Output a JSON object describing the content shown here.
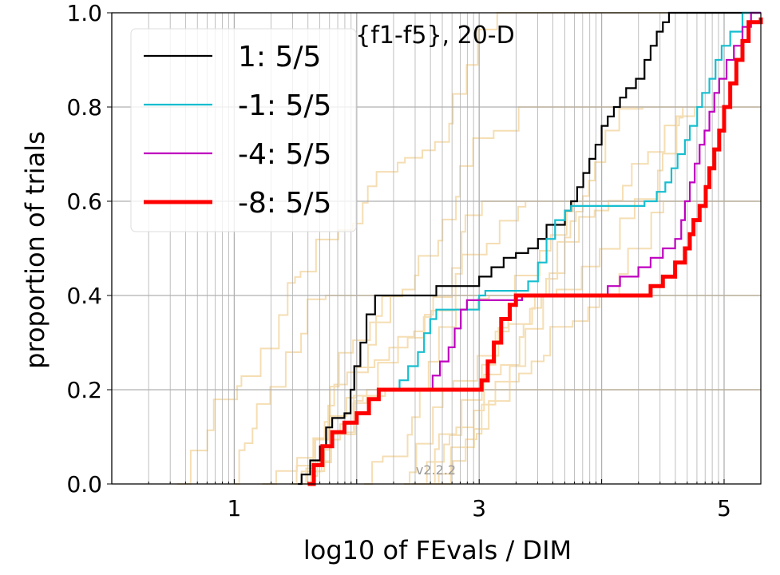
{
  "chart_data": {
    "type": "line",
    "title": "{f1-f5}, 20-D",
    "xlabel": "log10 of FEvals / DIM",
    "ylabel": "proportion of trials",
    "xlim": [
      0.0,
      5.3
    ],
    "ylim": [
      0.0,
      1.0
    ],
    "x_ticks": [
      1,
      3,
      5
    ],
    "x_tick_labels": [
      "1",
      "3",
      "5"
    ],
    "y_ticks": [
      0.0,
      0.2,
      0.4,
      0.6,
      0.8,
      1.0
    ],
    "y_tick_labels": [
      "0.0",
      "0.2",
      "0.4",
      "0.6",
      "0.8",
      "1.0"
    ],
    "grid": true,
    "legend_position": "top-left",
    "version": "v2.2.2",
    "series": [
      {
        "name": "1: 5/5",
        "color": "#000000",
        "points": [
          [
            1.52,
            0.0
          ],
          [
            1.55,
            0.02
          ],
          [
            1.62,
            0.05
          ],
          [
            1.7,
            0.08
          ],
          [
            1.75,
            0.12
          ],
          [
            1.8,
            0.14
          ],
          [
            1.9,
            0.15
          ],
          [
            1.95,
            0.2
          ],
          [
            1.98,
            0.25
          ],
          [
            2.03,
            0.3
          ],
          [
            2.08,
            0.36
          ],
          [
            2.15,
            0.4
          ],
          [
            2.6,
            0.4
          ],
          [
            2.65,
            0.42
          ],
          [
            2.95,
            0.42
          ],
          [
            3.0,
            0.44
          ],
          [
            3.1,
            0.46
          ],
          [
            3.2,
            0.48
          ],
          [
            3.3,
            0.49
          ],
          [
            3.4,
            0.5
          ],
          [
            3.48,
            0.52
          ],
          [
            3.55,
            0.55
          ],
          [
            3.65,
            0.55
          ],
          [
            3.7,
            0.58
          ],
          [
            3.75,
            0.6
          ],
          [
            3.8,
            0.63
          ],
          [
            3.85,
            0.66
          ],
          [
            3.9,
            0.69
          ],
          [
            3.95,
            0.72
          ],
          [
            4.0,
            0.76
          ],
          [
            4.05,
            0.78
          ],
          [
            4.1,
            0.8
          ],
          [
            4.15,
            0.82
          ],
          [
            4.2,
            0.84
          ],
          [
            4.28,
            0.86
          ],
          [
            4.35,
            0.9
          ],
          [
            4.4,
            0.93
          ],
          [
            4.45,
            0.96
          ],
          [
            4.5,
            0.98
          ],
          [
            4.55,
            1.0
          ],
          [
            5.3,
            1.0
          ]
        ]
      },
      {
        "name": "-1: 5/5",
        "color": "#17becf",
        "points": [
          [
            2.25,
            0.2
          ],
          [
            2.35,
            0.22
          ],
          [
            2.42,
            0.25
          ],
          [
            2.5,
            0.28
          ],
          [
            2.55,
            0.32
          ],
          [
            2.6,
            0.35
          ],
          [
            2.65,
            0.37
          ],
          [
            2.95,
            0.37
          ],
          [
            3.0,
            0.4
          ],
          [
            3.05,
            0.41
          ],
          [
            3.3,
            0.41
          ],
          [
            3.4,
            0.43
          ],
          [
            3.48,
            0.47
          ],
          [
            3.55,
            0.52
          ],
          [
            3.62,
            0.56
          ],
          [
            3.7,
            0.58
          ],
          [
            3.75,
            0.59
          ],
          [
            4.35,
            0.6
          ],
          [
            4.45,
            0.62
          ],
          [
            4.52,
            0.64
          ],
          [
            4.57,
            0.67
          ],
          [
            4.62,
            0.7
          ],
          [
            4.68,
            0.73
          ],
          [
            4.72,
            0.76
          ],
          [
            4.78,
            0.8
          ],
          [
            4.82,
            0.83
          ],
          [
            4.88,
            0.86
          ],
          [
            4.93,
            0.9
          ],
          [
            4.98,
            0.93
          ],
          [
            5.05,
            0.96
          ],
          [
            5.15,
            1.0
          ],
          [
            5.3,
            1.0
          ]
        ]
      },
      {
        "name": "-4: 5/5",
        "color": "#bf00bf",
        "points": [
          [
            2.55,
            0.2
          ],
          [
            2.62,
            0.23
          ],
          [
            2.68,
            0.26
          ],
          [
            2.75,
            0.29
          ],
          [
            2.8,
            0.33
          ],
          [
            2.85,
            0.37
          ],
          [
            2.9,
            0.39
          ],
          [
            3.35,
            0.4
          ],
          [
            4.0,
            0.4
          ],
          [
            4.05,
            0.42
          ],
          [
            4.15,
            0.44
          ],
          [
            4.3,
            0.46
          ],
          [
            4.4,
            0.48
          ],
          [
            4.5,
            0.5
          ],
          [
            4.6,
            0.52
          ],
          [
            4.65,
            0.56
          ],
          [
            4.68,
            0.6
          ],
          [
            4.72,
            0.64
          ],
          [
            4.76,
            0.68
          ],
          [
            4.8,
            0.72
          ],
          [
            4.84,
            0.75
          ],
          [
            4.88,
            0.79
          ],
          [
            4.92,
            0.83
          ],
          [
            4.96,
            0.86
          ],
          [
            5.02,
            0.9
          ],
          [
            5.08,
            0.93
          ],
          [
            5.15,
            0.97
          ],
          [
            5.22,
            1.0
          ],
          [
            5.3,
            1.0
          ]
        ]
      },
      {
        "name": "-8: 5/5",
        "color": "#ff0000",
        "points": [
          [
            1.6,
            0.0
          ],
          [
            1.65,
            0.04
          ],
          [
            1.72,
            0.08
          ],
          [
            1.8,
            0.11
          ],
          [
            1.9,
            0.13
          ],
          [
            2.0,
            0.15
          ],
          [
            2.1,
            0.18
          ],
          [
            2.18,
            0.2
          ],
          [
            2.95,
            0.2
          ],
          [
            3.02,
            0.22
          ],
          [
            3.07,
            0.26
          ],
          [
            3.12,
            0.3
          ],
          [
            3.18,
            0.35
          ],
          [
            3.25,
            0.38
          ],
          [
            3.3,
            0.4
          ],
          [
            4.35,
            0.4
          ],
          [
            4.4,
            0.42
          ],
          [
            4.5,
            0.44
          ],
          [
            4.6,
            0.47
          ],
          [
            4.68,
            0.5
          ],
          [
            4.72,
            0.53
          ],
          [
            4.75,
            0.56
          ],
          [
            4.8,
            0.59
          ],
          [
            4.85,
            0.63
          ],
          [
            4.88,
            0.67
          ],
          [
            4.92,
            0.71
          ],
          [
            4.96,
            0.75
          ],
          [
            5.0,
            0.8
          ],
          [
            5.05,
            0.85
          ],
          [
            5.1,
            0.9
          ],
          [
            5.15,
            0.94
          ],
          [
            5.2,
            0.98
          ],
          [
            5.3,
            0.99
          ]
        ]
      }
    ]
  }
}
